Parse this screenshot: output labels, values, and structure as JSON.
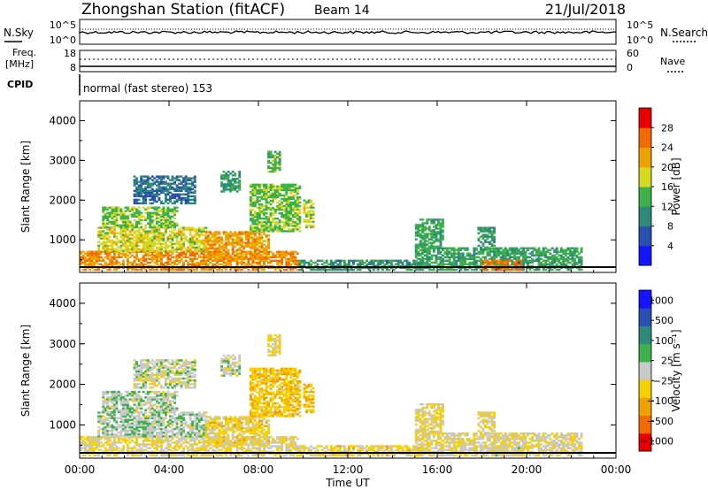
{
  "header": {
    "title": "Zhongshan Station (fitACF)",
    "beam": "Beam 14",
    "date": "21/Jul/2018"
  },
  "top_panels": {
    "nsky_label": "N.Sky",
    "nsky_ticks": [
      "10^5",
      "10^0"
    ],
    "nsearch_label": "N.Search",
    "nsearch_ticks": [
      "10^5",
      "10^0"
    ],
    "freq_label_1": "Freq.",
    "freq_label_2": "[MHz]",
    "freq_ticks": [
      "18",
      "8"
    ],
    "nave_label": "Nave",
    "nave_ticks": [
      "60",
      "0"
    ],
    "cpid_label": "CPID",
    "cpid_text": "normal (fast stereo) 153"
  },
  "chart_data": [
    {
      "type": "heatmap",
      "title": "",
      "xlabel": "Time UT",
      "ylabel": "Slant Range [km]",
      "x_ticks": [
        "00:00",
        "04:00",
        "08:00",
        "12:00",
        "16:00",
        "20:00",
        "00:00"
      ],
      "xlim_hours": [
        0,
        24
      ],
      "y_ticks": [
        "1000",
        "2000",
        "3000",
        "4000"
      ],
      "ylim": [
        180,
        4500
      ],
      "colorbar": {
        "label": "Power [dB]",
        "ticks": [
          "4",
          "8",
          "12",
          "16",
          "20",
          "24",
          "28"
        ],
        "range": [
          0,
          30
        ],
        "colors": [
          "#1414ff",
          "#2a4fb0",
          "#2f8a7a",
          "#3db04a",
          "#d8d820",
          "#f0a000",
          "#f06a00",
          "#e80000"
        ]
      },
      "echo_regions": [
        {
          "t0": 0.0,
          "t1": 9.7,
          "r0": 230,
          "r1": 700,
          "value": 22
        },
        {
          "t0": 0.8,
          "t1": 5.6,
          "r0": 700,
          "r1": 1300,
          "value": 17
        },
        {
          "t0": 5.6,
          "t1": 8.4,
          "r0": 500,
          "r1": 1200,
          "value": 21
        },
        {
          "t0": 1.0,
          "t1": 4.4,
          "r0": 1300,
          "r1": 1800,
          "value": 14
        },
        {
          "t0": 2.4,
          "t1": 5.1,
          "r0": 1900,
          "r1": 2600,
          "value": 8
        },
        {
          "t0": 6.3,
          "t1": 7.1,
          "r0": 2200,
          "r1": 2700,
          "value": 11
        },
        {
          "t0": 7.6,
          "t1": 9.8,
          "r0": 1200,
          "r1": 2400,
          "value": 14
        },
        {
          "t0": 8.4,
          "t1": 8.9,
          "r0": 2700,
          "r1": 3200,
          "value": 13
        },
        {
          "t0": 10.0,
          "t1": 10.4,
          "r0": 1300,
          "r1": 2000,
          "value": 17
        },
        {
          "t0": 9.8,
          "t1": 15.3,
          "r0": 230,
          "r1": 500,
          "value": 10
        },
        {
          "t0": 15.0,
          "t1": 16.3,
          "r0": 230,
          "r1": 1500,
          "value": 12
        },
        {
          "t0": 16.3,
          "t1": 22.5,
          "r0": 230,
          "r1": 800,
          "value": 12
        },
        {
          "t0": 18.0,
          "t1": 19.8,
          "r0": 230,
          "r1": 480,
          "value": 24
        },
        {
          "t0": 17.8,
          "t1": 18.6,
          "r0": 700,
          "r1": 1300,
          "value": 11
        }
      ]
    },
    {
      "type": "heatmap",
      "title": "",
      "xlabel": "Time UT",
      "ylabel": "Slant Range [km]",
      "x_ticks": [
        "00:00",
        "04:00",
        "08:00",
        "12:00",
        "16:00",
        "20:00",
        "00:00"
      ],
      "xlim_hours": [
        0,
        24
      ],
      "y_ticks": [
        "1000",
        "2000",
        "3000",
        "4000"
      ],
      "ylim": [
        180,
        4500
      ],
      "colorbar": {
        "label": "Velocity [m s⁻¹]",
        "ticks": [
          "1000",
          "500",
          "100",
          "25",
          "−25",
          "−100",
          "−500",
          "−1000"
        ],
        "range": [
          -1100,
          1100
        ],
        "colors": [
          "#e80000",
          "#f06a00",
          "#f0a000",
          "#f7d000",
          "#c8c8c8",
          "#3db04a",
          "#2f8a7a",
          "#2a4fb0",
          "#1414ff"
        ]
      },
      "echo_regions": [
        {
          "t0": 0.0,
          "t1": 9.7,
          "r0": 230,
          "r1": 700,
          "value": -120
        },
        {
          "t0": 0.8,
          "t1": 5.6,
          "r0": 700,
          "r1": 1300,
          "value": 60
        },
        {
          "t0": 5.6,
          "t1": 8.4,
          "r0": 500,
          "r1": 1200,
          "value": -200
        },
        {
          "t0": 1.0,
          "t1": 4.4,
          "r0": 1300,
          "r1": 1800,
          "value": 40
        },
        {
          "t0": 2.4,
          "t1": 5.1,
          "r0": 1900,
          "r1": 2600,
          "value": 0
        },
        {
          "t0": 6.3,
          "t1": 7.1,
          "r0": 2200,
          "r1": 2700,
          "value": 0
        },
        {
          "t0": 7.6,
          "t1": 9.8,
          "r0": 1200,
          "r1": 2400,
          "value": -300
        },
        {
          "t0": 8.4,
          "t1": 8.9,
          "r0": 2700,
          "r1": 3200,
          "value": -150
        },
        {
          "t0": 10.0,
          "t1": 10.4,
          "r0": 1300,
          "r1": 2000,
          "value": -300
        },
        {
          "t0": 9.8,
          "t1": 15.3,
          "r0": 230,
          "r1": 500,
          "value": -200
        },
        {
          "t0": 15.0,
          "t1": 16.3,
          "r0": 230,
          "r1": 1500,
          "value": -150
        },
        {
          "t0": 16.3,
          "t1": 22.5,
          "r0": 230,
          "r1": 800,
          "value": -80
        },
        {
          "t0": 18.0,
          "t1": 19.8,
          "r0": 230,
          "r1": 480,
          "value": -60
        },
        {
          "t0": 17.8,
          "t1": 18.6,
          "r0": 700,
          "r1": 1300,
          "value": -100
        }
      ]
    }
  ]
}
